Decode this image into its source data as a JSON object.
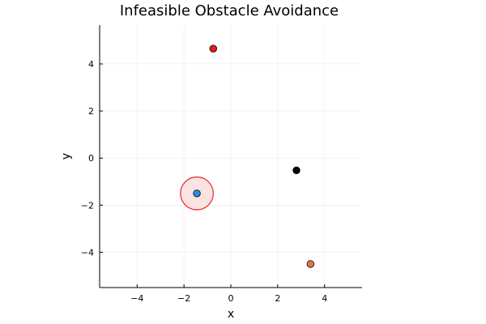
{
  "chart_data": {
    "type": "scatter",
    "title": "Infeasible Obstacle Avoidance",
    "xlabel": "x",
    "ylabel": "y",
    "xlim": [
      -5.6,
      5.6
    ],
    "ylim": [
      -5.5,
      5.65
    ],
    "xticks": [
      -4,
      -2,
      0,
      2,
      4
    ],
    "yticks": [
      -4,
      -2,
      0,
      2,
      4
    ],
    "xtick_labels": [
      "−4",
      "−2",
      "0",
      "2",
      "4"
    ],
    "ytick_labels": [
      "−4",
      "−2",
      "0",
      "2",
      "4"
    ],
    "grid": true,
    "legend": "none",
    "obstacle": {
      "center": [
        -1.45,
        -1.5
      ],
      "radius": 0.7,
      "fill": "#fbe3e1",
      "stroke": "#e8262a"
    },
    "points": [
      {
        "x": -0.75,
        "y": 4.65,
        "color": "#e31a1c"
      },
      {
        "x": 2.8,
        "y": -0.52,
        "color": "#000000"
      },
      {
        "x": -1.45,
        "y": -1.5,
        "color": "#2b8ae6"
      },
      {
        "x": 3.4,
        "y": -4.5,
        "color": "#e5744a"
      }
    ]
  }
}
